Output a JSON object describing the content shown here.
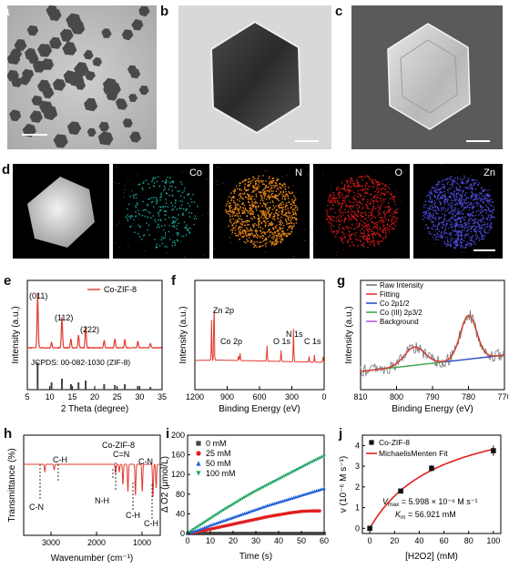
{
  "panels": {
    "a": "a",
    "b": "b",
    "c": "c",
    "d": "d",
    "e": "e",
    "f": "f",
    "g": "g",
    "h": "h",
    "i": "i",
    "j": "j"
  },
  "eds_labels": [
    "Co",
    "N",
    "O",
    "Zn"
  ],
  "eds_colors": [
    "#19a7a0",
    "#f08a1a",
    "#d01818",
    "#4b49d6"
  ],
  "panel_e": {
    "xlabel": "2 Theta (degree)",
    "ylabel": "Intensity (a.u.)",
    "xticks": [
      "5",
      "10",
      "15",
      "20",
      "25",
      "30",
      "35"
    ],
    "legend": "Co-ZIF-8",
    "peaks": [
      "(011)",
      "(112)",
      "(222)"
    ],
    "reference": "JCPDS: 00-082-1030 (ZIF-8)",
    "color": "#e03a2e"
  },
  "panel_f": {
    "xlabel": "Binding Energy (eV)",
    "ylabel": "Intensity (a.u.)",
    "xticks": [
      "1200",
      "900",
      "600",
      "300",
      "0"
    ],
    "annotations": [
      "Zn 2p",
      "Co 2p",
      "O 1s",
      "N 1s",
      "C 1s"
    ],
    "color": "#e03a2e"
  },
  "panel_g": {
    "xlabel": "Binding Energy (eV)",
    "ylabel": "Intensity (a.u.)",
    "xticks": [
      "810",
      "800",
      "790",
      "780",
      "770"
    ],
    "legend": [
      "Raw Intensity",
      "Fitting",
      "Co 2p1/2",
      "Co (III) 2p3/2",
      "Background"
    ],
    "legend_colors": [
      "#777777",
      "#e03a2e",
      "#2a56c6",
      "#3fae49",
      "#b05ad6"
    ]
  },
  "panel_h": {
    "title": "Co-ZIF-8",
    "xlabel": "Wavenumber (cm⁻¹)",
    "ylabel": "Transmittance (%)",
    "xticks": [
      "3000",
      "2000",
      "1000"
    ],
    "annotations": [
      "C-H",
      "C-N",
      "C=N",
      "N-H",
      "C-H",
      "C-H",
      "C-N"
    ],
    "color": "#e03a2e"
  },
  "chart_data": [
    {
      "type": "scatter",
      "panel": "i",
      "xlabel": "Time (s)",
      "ylabel": "Δ O2 (μmol/L)",
      "xticks": [
        "0",
        "10",
        "20",
        "30",
        "40",
        "50",
        "60"
      ],
      "yticks": [
        "0",
        "40",
        "80",
        "120",
        "160",
        "200"
      ],
      "xlim": [
        0,
        60
      ],
      "ylim": [
        0,
        200
      ],
      "series": [
        {
          "name": "0 mM",
          "color": "#444444",
          "marker": "square",
          "x": [
            0,
            5,
            10,
            15,
            20,
            25,
            30,
            35,
            40,
            45,
            50,
            55,
            60
          ],
          "y": [
            0,
            0,
            0,
            0,
            0,
            0,
            0,
            0,
            0,
            0,
            0,
            0,
            0
          ]
        },
        {
          "name": "25 mM",
          "color": "#e02020",
          "marker": "circle",
          "x": [
            0,
            5,
            10,
            15,
            20,
            25,
            30,
            35,
            40,
            45,
            50,
            55,
            58
          ],
          "y": [
            0,
            4,
            9,
            14,
            19,
            24,
            29,
            34,
            38,
            42,
            45,
            46,
            46
          ]
        },
        {
          "name": "50 mM",
          "color": "#1f5fd6",
          "marker": "triangle",
          "x": [
            0,
            5,
            10,
            15,
            20,
            25,
            30,
            35,
            40,
            45,
            50,
            55,
            60
          ],
          "y": [
            0,
            8,
            17,
            25,
            33,
            41,
            49,
            57,
            64,
            71,
            78,
            85,
            92
          ]
        },
        {
          "name": "100 mM",
          "color": "#21a663",
          "marker": "triangle-down",
          "x": [
            0,
            5,
            10,
            15,
            20,
            25,
            30,
            35,
            40,
            45,
            50,
            55,
            60
          ],
          "y": [
            0,
            15,
            30,
            45,
            59,
            73,
            86,
            98,
            110,
            122,
            134,
            146,
            157
          ]
        }
      ]
    },
    {
      "type": "scatter",
      "panel": "j",
      "xlabel": "[H2O2] (mM)",
      "ylabel": "v (10⁻⁶ M s⁻¹)",
      "xticks": [
        "0",
        "20",
        "40",
        "60",
        "80",
        "100"
      ],
      "yticks": [
        "0",
        "1",
        "2",
        "3",
        "4"
      ],
      "xlim": [
        0,
        100
      ],
      "ylim": [
        0,
        4.5
      ],
      "series": [
        {
          "name": "Co-ZIF-8",
          "color": "#111111",
          "marker": "square",
          "x": [
            0,
            25,
            50,
            100
          ],
          "y": [
            0,
            1.8,
            2.9,
            3.75
          ],
          "err": [
            0.1,
            0.1,
            0.15,
            0.25
          ]
        },
        {
          "name": "MichaelisMenten Fit",
          "color": "#e02020",
          "line": true,
          "vmax": 5.998,
          "km": 56.921
        }
      ],
      "vmax_text": "V",
      "vmax_sub": "max",
      "vmax_rest": " = 5.998 × 10⁻⁶ M s⁻¹",
      "km_text": "K",
      "km_sub": "m",
      "km_rest": " = 56.921 mM"
    }
  ]
}
